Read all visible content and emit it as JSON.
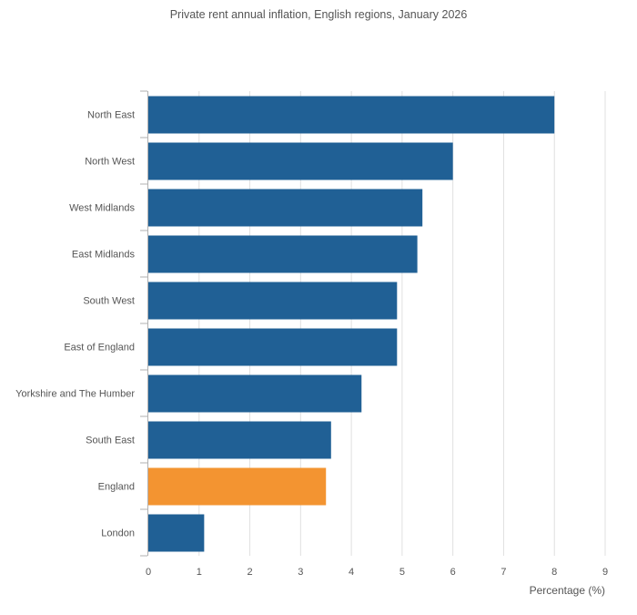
{
  "chart_data": {
    "type": "bar",
    "orientation": "horizontal",
    "title": "Private rent annual inflation, English regions, January 2026",
    "xlabel": "Percentage (%)",
    "ylabel": "",
    "categories": [
      "North East",
      "North West",
      "West Midlands",
      "East Midlands",
      "South West",
      "East of England",
      "Yorkshire and The Humber",
      "South East",
      "England",
      "London"
    ],
    "values": [
      8.0,
      6.0,
      5.4,
      5.3,
      4.9,
      4.9,
      4.2,
      3.6,
      3.5,
      1.1
    ],
    "xlim": [
      0,
      9
    ],
    "xticks": [
      "0",
      "1",
      "2",
      "3",
      "4",
      "5",
      "6",
      "7",
      "8",
      "9"
    ],
    "grid": "vertical",
    "legend": "none",
    "colors": {
      "default": "#206095",
      "highlight": "#f39431",
      "highlight_category": "England",
      "grid": "#e0e0e0",
      "axis": "#b0b0b0",
      "text": "#555555"
    }
  }
}
